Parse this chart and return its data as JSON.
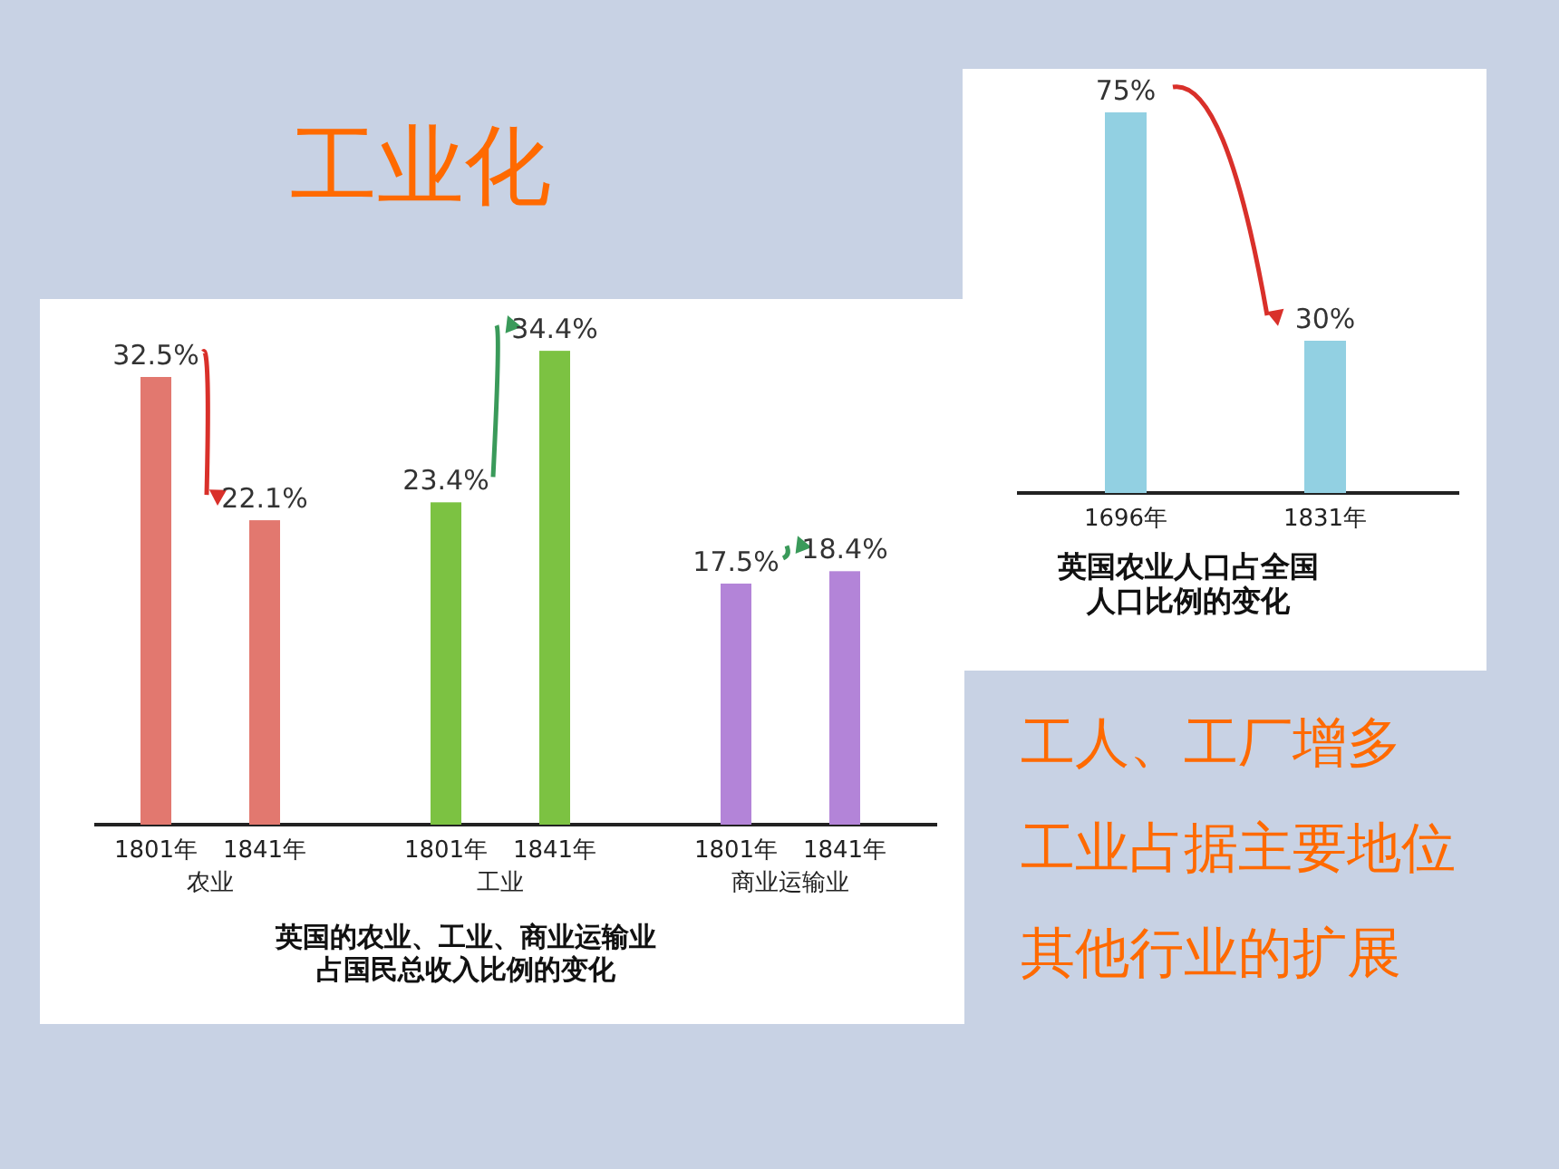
{
  "chart_data": [
    {
      "type": "bar",
      "title": "英国的农业、工业、商业运输业占国民总收入比例的变化",
      "categories": [
        "1801年",
        "1841年",
        "1801年",
        "1841年",
        "1801年",
        "1841年"
      ],
      "values": [
        32.5,
        22.1,
        23.4,
        34.4,
        17.5,
        18.4
      ],
      "value_labels": [
        "32.5%",
        "22.1%",
        "23.4%",
        "34.4%",
        "17.5%",
        "18.4%"
      ],
      "colors": [
        "#e2786f",
        "#e2786f",
        "#7cc242",
        "#7cc242",
        "#b384d8",
        "#b384d8"
      ],
      "annotations": [
        "农业",
        "工业",
        "商业运输业"
      ]
    },
    {
      "type": "bar",
      "title": "英国农业人口占全国人口比例的变化",
      "categories": [
        "1696年",
        "1831年"
      ],
      "values": [
        75,
        30
      ],
      "value_labels": [
        "75%",
        "30%"
      ],
      "colors": [
        "#92d0e2",
        "#92d0e2"
      ]
    },
    {
      "type": "other",
      "title": "工业化",
      "annotations": [
        "工人、工厂增多",
        "工业占据主要地位",
        "其他行业的扩展"
      ]
    }
  ]
}
